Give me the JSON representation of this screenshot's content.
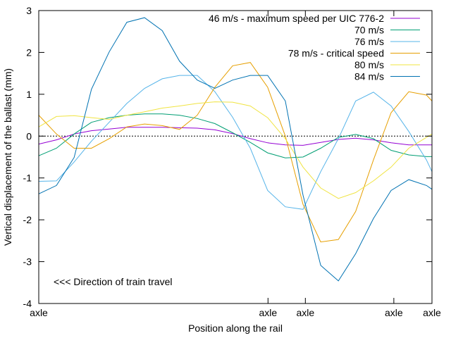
{
  "chart_data": {
    "type": "line",
    "title": "",
    "xlabel": "Position along the rail",
    "ylabel": "Vertical displacement of the ballast (mm)",
    "annotation": "<<< Direction of train travel",
    "xlim": [
      0,
      100
    ],
    "ylim": [
      -4,
      3
    ],
    "yticks": [
      -4,
      -3,
      -2,
      -1,
      0,
      1,
      2,
      3
    ],
    "xticks": [
      {
        "value": 0,
        "label": "axle"
      },
      {
        "value": 58.3,
        "label": "axle"
      },
      {
        "value": 67.8,
        "label": "axle"
      },
      {
        "value": 90.3,
        "label": "axle"
      },
      {
        "value": 100,
        "label": "axle"
      }
    ],
    "zero_line": true,
    "grid": false,
    "legend_position": "top-right",
    "x": [
      0,
      4.5,
      9.0,
      13.4,
      17.9,
      22.4,
      26.9,
      31.4,
      35.8,
      40.3,
      44.8,
      49.3,
      53.8,
      58.2,
      62.7,
      67.2,
      71.7,
      76.2,
      80.6,
      85.1,
      89.6,
      94.1,
      98.6,
      100
    ],
    "series": [
      {
        "name": "46 m/s - maximum speed per UIC 776-2",
        "color": "#9400d3",
        "values": [
          -0.19,
          -0.09,
          0.05,
          0.13,
          0.17,
          0.21,
          0.21,
          0.21,
          0.2,
          0.19,
          0.15,
          0.06,
          -0.06,
          -0.16,
          -0.21,
          -0.22,
          -0.15,
          -0.08,
          -0.05,
          -0.09,
          -0.16,
          -0.21,
          -0.21,
          -0.21
        ]
      },
      {
        "name": "70 m/s",
        "color": "#009e73",
        "values": [
          -0.47,
          -0.29,
          0.05,
          0.33,
          0.44,
          0.5,
          0.53,
          0.53,
          0.5,
          0.42,
          0.3,
          0.08,
          -0.15,
          -0.4,
          -0.52,
          -0.5,
          -0.29,
          -0.03,
          0.04,
          -0.06,
          -0.34,
          -0.45,
          -0.49,
          -0.49
        ]
      },
      {
        "name": "76 m/s",
        "color": "#56b4e9",
        "values": [
          -1.08,
          -1.07,
          -0.62,
          -0.12,
          0.33,
          0.78,
          1.14,
          1.37,
          1.45,
          1.45,
          1.06,
          0.45,
          -0.29,
          -1.3,
          -1.69,
          -1.75,
          -0.85,
          -0.06,
          0.84,
          1.05,
          0.72,
          0.11,
          -0.57,
          -0.85
        ]
      },
      {
        "name": "78 m/s - critical speed",
        "color": "#e69f00",
        "values": [
          0.5,
          0.05,
          -0.29,
          -0.29,
          -0.06,
          0.22,
          0.29,
          0.25,
          0.16,
          0.5,
          1.17,
          1.68,
          1.76,
          1.17,
          0.0,
          -1.63,
          -2.53,
          -2.47,
          -1.8,
          -0.57,
          0.56,
          1.06,
          0.98,
          0.84
        ]
      },
      {
        "name": "80 m/s",
        "color": "#f0e442",
        "values": [
          0.22,
          0.47,
          0.49,
          0.44,
          0.4,
          0.5,
          0.58,
          0.67,
          0.72,
          0.78,
          0.82,
          0.81,
          0.72,
          0.44,
          -0.06,
          -0.74,
          -1.24,
          -1.49,
          -1.35,
          -1.07,
          -0.74,
          -0.29,
          -0.03,
          0.05
        ]
      },
      {
        "name": "84 m/s",
        "color": "#0072b2",
        "values": [
          -1.38,
          -1.18,
          -0.51,
          1.12,
          2.01,
          2.72,
          2.83,
          2.52,
          1.79,
          1.34,
          1.14,
          1.34,
          1.45,
          1.45,
          0.84,
          -1.41,
          -3.09,
          -3.46,
          -2.81,
          -1.97,
          -1.3,
          -1.04,
          -1.18,
          -1.27
        ]
      }
    ]
  }
}
